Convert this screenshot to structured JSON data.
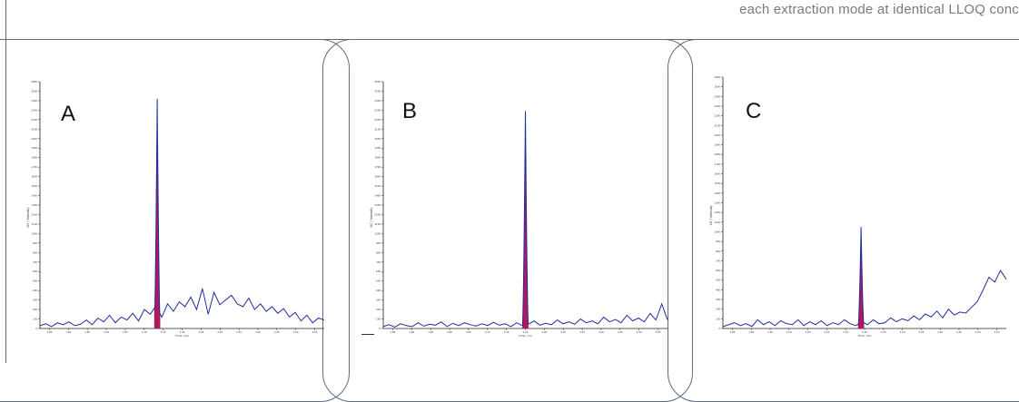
{
  "header": {
    "caption": "each extraction mode at identical LLOQ conc"
  },
  "colors": {
    "trace": "#1f2e9e",
    "peak_fill": "#b0185c",
    "frame": "#5e6c80"
  },
  "chart_data": [
    {
      "type": "line",
      "panel_label": "A",
      "ylim": [
        0,
        2600
      ],
      "yticks": [
        0,
        100,
        200,
        300,
        400,
        500,
        600,
        700,
        800,
        900,
        1000,
        1100,
        1200,
        1300,
        1400,
        1500,
        1600,
        1700,
        1800,
        1900,
        2000,
        2100,
        2200,
        2300,
        2400,
        2500,
        2600
      ],
      "ylabel": "XIC / Intensity",
      "xlim": [
        1.8,
        2.6
      ],
      "xticks": [
        "1.85",
        "1.90",
        "1.95",
        "2.00",
        "2.05",
        "2.10",
        "2.15",
        "2.20",
        "2.25",
        "2.30",
        "2.35",
        "2.40",
        "2.45",
        "2.50",
        "2.55"
      ],
      "xlabel": "Time, min",
      "peak": {
        "center": 2.13,
        "height": 2420,
        "halfwidth": 0.0085
      },
      "baseline": [
        30,
        50,
        20,
        60,
        40,
        70,
        30,
        45,
        90,
        40,
        110,
        70,
        140,
        60,
        120,
        90,
        160,
        80,
        200,
        150,
        240,
        120,
        260,
        180,
        280,
        230,
        330,
        200,
        420,
        150,
        380,
        250,
        300,
        350,
        260,
        230,
        320,
        200,
        260,
        180,
        230,
        160,
        210,
        120,
        170,
        80,
        140,
        60,
        110,
        90
      ]
    },
    {
      "type": "line",
      "panel_label": "B",
      "ylim": [
        0,
        2600
      ],
      "yticks": [
        0,
        100,
        200,
        300,
        400,
        500,
        600,
        700,
        800,
        900,
        1000,
        1100,
        1200,
        1300,
        1400,
        1500,
        1600,
        1700,
        1800,
        1900,
        2000,
        2100,
        2200,
        2300,
        2400,
        2500,
        2600
      ],
      "ylabel": "XIC / Intensity",
      "xlim": [
        1.8,
        2.6
      ],
      "xticks": [
        "1.85",
        "1.90",
        "1.95",
        "2.00",
        "2.05",
        "2.10",
        "2.15",
        "2.20",
        "2.25",
        "2.30",
        "2.35",
        "2.40",
        "2.45",
        "2.50",
        "2.55"
      ],
      "xlabel": "Time, min",
      "peak": {
        "center": 2.2,
        "height": 2290,
        "halfwidth": 0.0085
      },
      "baseline": [
        20,
        40,
        15,
        50,
        30,
        20,
        60,
        25,
        45,
        35,
        70,
        20,
        55,
        30,
        60,
        40,
        25,
        50,
        30,
        65,
        35,
        50,
        20,
        60,
        30,
        45,
        80,
        35,
        55,
        40,
        90,
        50,
        70,
        45,
        100,
        60,
        80,
        50,
        120,
        70,
        95,
        60,
        140,
        80,
        110,
        70,
        160,
        90,
        260,
        90
      ]
    },
    {
      "type": "line",
      "panel_label": "C",
      "ylim": [
        0,
        2600
      ],
      "yticks": [
        0,
        100,
        200,
        300,
        400,
        500,
        600,
        700,
        800,
        900,
        1000,
        1100,
        1200,
        1300,
        1400,
        1500,
        1600,
        1700,
        1800,
        1900,
        2000,
        2100,
        2200,
        2300,
        2400,
        2500,
        2600
      ],
      "ylabel": "XIC / Intensity",
      "xlim": [
        1.8,
        2.6
      ],
      "xticks": [
        "1.85",
        "1.90",
        "1.95",
        "2.00",
        "2.05",
        "2.10",
        "2.15",
        "2.20",
        "2.25",
        "2.30",
        "2.35",
        "2.40",
        "2.45",
        "2.50",
        "2.55"
      ],
      "xlabel": "Time, min",
      "peak": {
        "center": 2.19,
        "height": 1050,
        "halfwidth": 0.0085
      },
      "baseline": [
        20,
        40,
        60,
        30,
        50,
        20,
        90,
        40,
        70,
        30,
        80,
        50,
        40,
        90,
        30,
        70,
        40,
        80,
        30,
        60,
        40,
        90,
        50,
        30,
        70,
        40,
        90,
        50,
        60,
        110,
        70,
        100,
        80,
        130,
        90,
        150,
        120,
        180,
        110,
        200,
        140,
        170,
        160,
        220,
        280,
        400,
        530,
        480,
        600,
        510
      ]
    }
  ]
}
